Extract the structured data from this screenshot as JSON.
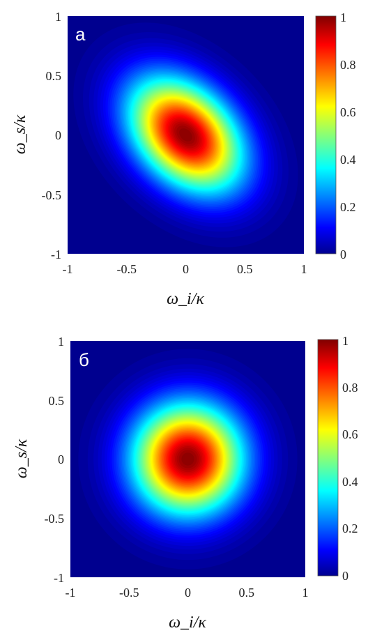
{
  "chart_data": [
    {
      "type": "heatmap",
      "panel_label": "а",
      "xlabel": "ω_i/κ",
      "ylabel": "ω_s/κ",
      "xlim": [
        -1,
        1
      ],
      "ylim": [
        -1,
        1
      ],
      "xticks": [
        "-1",
        "-0.5",
        "0",
        "0.5",
        "1"
      ],
      "yticks": [
        "1",
        "0.5",
        "0",
        "-0.5",
        "-1"
      ],
      "colorbar": {
        "ticks": [
          "1",
          "0.8",
          "0.6",
          "0.4",
          "0.2",
          "0"
        ],
        "range": [
          0,
          1
        ],
        "colormap": "jet"
      },
      "peak": {
        "x": 0,
        "y": 0,
        "value": 1
      },
      "shape": "ellipse tilted along anti-diagonal",
      "sigma_major": 0.38,
      "sigma_minor": 0.26,
      "orientation_deg": -45
    },
    {
      "type": "heatmap",
      "panel_label": "б",
      "xlabel": "ω_i/κ",
      "ylabel": "ω_s/κ",
      "xlim": [
        -1,
        1
      ],
      "ylim": [
        -1,
        1
      ],
      "xticks": [
        "-1",
        "-0.5",
        "0",
        "0.5",
        "1"
      ],
      "yticks": [
        "1",
        "0.5",
        "0",
        "-0.5",
        "-1"
      ],
      "colorbar": {
        "ticks": [
          "1",
          "0.8",
          "0.6",
          "0.4",
          "0.2",
          "0"
        ],
        "range": [
          0,
          1
        ],
        "colormap": "jet"
      },
      "peak": {
        "x": 0,
        "y": 0,
        "value": 1
      },
      "shape": "circular",
      "sigma_major": 0.32,
      "sigma_minor": 0.32,
      "orientation_deg": 0
    }
  ]
}
